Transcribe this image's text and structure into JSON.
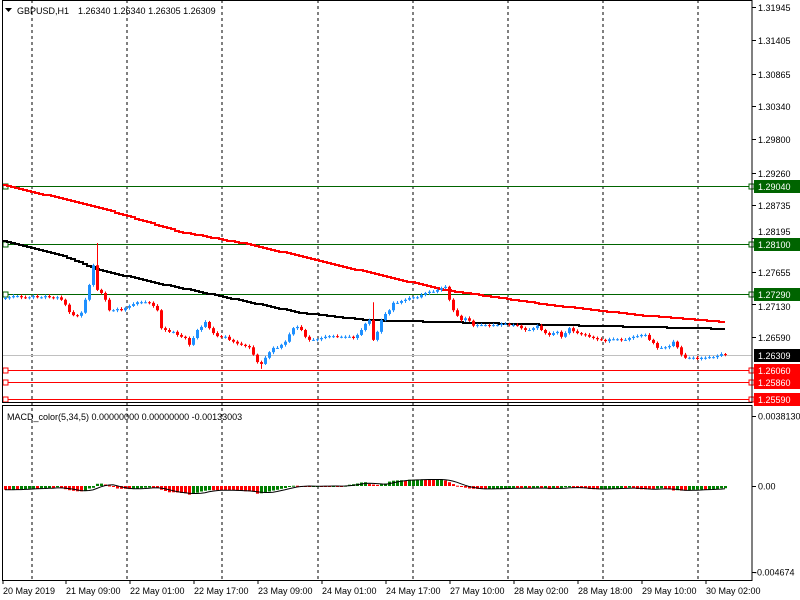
{
  "header": {
    "symbol_label": "GBPUSD,H1",
    "ohlc_label": "1.26340 1.26340 1.26305 1.26309"
  },
  "colors": {
    "bull": "#1E90FF",
    "bear": "#FF0000",
    "ma_fast": "#FF0000",
    "ma_slow": "#000000",
    "macd_up": "#008000",
    "macd_down": "#FF0000",
    "support": "#006400",
    "resistance": "#FF0000",
    "current": "#000000",
    "grid": "#000000"
  },
  "chart_data": [
    {
      "type": "candlestick",
      "title": "GBPUSD,H1",
      "timeframe": "H1",
      "x_labels": [
        "20 May 2019",
        "21 May 09:00",
        "22 May 01:00",
        "22 May 17:00",
        "23 May 09:00",
        "24 May 01:00",
        "24 May 17:00",
        "27 May 10:00",
        "28 May 02:00",
        "28 May 18:00",
        "29 May 10:00",
        "30 May 02:00"
      ],
      "price_axis": {
        "ylim": [
          1.2552,
          1.32
        ],
        "ticks": [
          "1.31945",
          "1.31405",
          "1.30865",
          "1.30340",
          "1.29800",
          "1.29260",
          "1.28735",
          "1.28195",
          "1.27655",
          "1.27130",
          "1.26590"
        ]
      },
      "first_open": 1.2722,
      "closes": [
        1.2723,
        1.2724,
        1.2726,
        1.2726,
        1.2724,
        1.2723,
        1.2724,
        1.2726,
        1.2724,
        1.2724,
        1.2726,
        1.2724,
        1.2723,
        1.2724,
        1.272,
        1.2712,
        1.27,
        1.2695,
        1.2694,
        1.2699,
        1.272,
        1.2744,
        1.2776,
        1.2736,
        1.2731,
        1.272,
        1.2703,
        1.2703,
        1.2705,
        1.2703,
        1.2707,
        1.271,
        1.2713,
        1.2716,
        1.2716,
        1.2716,
        1.2715,
        1.271,
        1.2703,
        1.2674,
        1.2671,
        1.2668,
        1.2668,
        1.2663,
        1.266,
        1.2658,
        1.2647,
        1.2658,
        1.2671,
        1.2676,
        1.2684,
        1.2674,
        1.2666,
        1.2661,
        1.266,
        1.266,
        1.2655,
        1.2652,
        1.2649,
        1.2647,
        1.2645,
        1.2643,
        1.2631,
        1.2619,
        1.2616,
        1.2626,
        1.2635,
        1.2642,
        1.2642,
        1.2647,
        1.2652,
        1.2664,
        1.2674,
        1.2676,
        1.2671,
        1.266,
        1.2655,
        1.2655,
        1.2656,
        1.2658,
        1.266,
        1.2661,
        1.2661,
        1.266,
        1.266,
        1.266,
        1.266,
        1.2658,
        1.2663,
        1.2671,
        1.2681,
        1.2687,
        1.2655,
        1.2668,
        1.2687,
        1.2697,
        1.2703,
        1.2715,
        1.2715,
        1.2718,
        1.272,
        1.2723,
        1.2724,
        1.2724,
        1.2728,
        1.2731,
        1.2733,
        1.2733,
        1.2736,
        1.2739,
        1.2741,
        1.272,
        1.2703,
        1.2694,
        1.2687,
        1.269,
        1.2686,
        1.2678,
        1.2679,
        1.2679,
        1.2679,
        1.2678,
        1.2679,
        1.2679,
        1.2681,
        1.2681,
        1.2679,
        1.2679,
        1.2678,
        1.2674,
        1.2671,
        1.2671,
        1.2674,
        1.2678,
        1.2671,
        1.2666,
        1.2663,
        1.2666,
        1.2668,
        1.266,
        1.2666,
        1.2674,
        1.2669,
        1.2666,
        1.2664,
        1.2663,
        1.266,
        1.2658,
        1.2656,
        1.2655,
        1.2653,
        1.2656,
        1.2656,
        1.2656,
        1.2655,
        1.2655,
        1.2658,
        1.266,
        1.2661,
        1.2663,
        1.2663,
        1.2655,
        1.265,
        1.2642,
        1.2642,
        1.2643,
        1.2645,
        1.2652,
        1.2643,
        1.2631,
        1.2626,
        1.2626,
        1.2626,
        1.2624,
        1.2626,
        1.2626,
        1.2627,
        1.2627,
        1.2629,
        1.2632,
        1.26309
      ],
      "high_overrides": [
        {
          "bar": 23,
          "high": 1.2812
        },
        {
          "bar": 92,
          "high": 1.2716
        }
      ],
      "low_overrides": [
        {
          "bar": 64,
          "low": 1.2608
        }
      ],
      "moving_averages": [
        {
          "name": "MA fast",
          "color_key": "ma_fast",
          "points": [
            [
              0,
              1.2906
            ],
            [
              24,
              1.2869
            ],
            [
              44,
              1.283
            ],
            [
              62,
              1.2809
            ],
            [
              86,
              1.2772
            ],
            [
              110,
              1.2736
            ],
            [
              136,
              1.2712
            ],
            [
              159,
              1.2695
            ],
            [
              180,
              1.2684
            ]
          ]
        },
        {
          "name": "MA slow",
          "color_key": "ma_slow",
          "points": [
            [
              0,
              1.2815
            ],
            [
              14,
              1.2793
            ],
            [
              24,
              1.2768
            ],
            [
              39,
              1.2746
            ],
            [
              54,
              1.2726
            ],
            [
              74,
              1.2699
            ],
            [
              91,
              1.2687
            ],
            [
              109,
              1.2684
            ],
            [
              139,
              1.2679
            ],
            [
              159,
              1.2676
            ],
            [
              180,
              1.2673
            ]
          ]
        }
      ],
      "levels": [
        {
          "value": "1.29040",
          "kind": "support"
        },
        {
          "value": "1.28100",
          "kind": "support"
        },
        {
          "value": "1.27290",
          "kind": "support"
        },
        {
          "value": "1.26060",
          "kind": "resistance"
        },
        {
          "value": "1.25860",
          "kind": "resistance"
        },
        {
          "value": "1.25590",
          "kind": "resistance"
        }
      ],
      "current_price": "1.26309"
    },
    {
      "type": "bar",
      "title": "MACD_color(5,34,5) 0.00000000 0.00000000 -0.00133003",
      "value_unit": "1e-4",
      "ylim": [
        -0.004674,
        0.003813
      ],
      "axis_labels": [
        "0.0038130",
        "0.00",
        "-0.004674"
      ],
      "histogram_e4": [
        -2.05,
        -2.05,
        -1.89,
        -1.89,
        -1.73,
        -1.62,
        -1.51,
        -1.35,
        -1.35,
        -1.24,
        -1.19,
        -1.08,
        -1.08,
        -0.65,
        -1.19,
        -1.73,
        -2.27,
        -2.59,
        -2.86,
        -2.86,
        -2.43,
        -1.35,
        -0.97,
        1.19,
        1.3,
        0.81,
        0.27,
        -0.27,
        -1.35,
        -1.51,
        -1.51,
        -1.67,
        -1.57,
        -1.35,
        -1.19,
        -0.92,
        -0.81,
        -0.81,
        -1.08,
        -2.05,
        -2.7,
        -3.4,
        -3.4,
        -3.51,
        -3.78,
        -3.94,
        -4.7,
        -4.32,
        -3.62,
        -2.97,
        -2.54,
        -2.27,
        -2.27,
        -2.27,
        -2.27,
        -2.27,
        -2.32,
        -2.43,
        -2.54,
        -2.7,
        -2.81,
        -2.86,
        -3.08,
        -4.16,
        -3.94,
        -3.51,
        -2.97,
        -2.43,
        -2.05,
        -1.51,
        -1.08,
        -0.54,
        0.16,
        0.16,
        -0.11,
        -0.16,
        -0.16,
        -0.11,
        0,
        0,
        0,
        -0.05,
        0,
        -0.05,
        -0.05,
        0.16,
        0.7,
        0.97,
        1.35,
        1.89,
        2.05,
        1.03,
        0.81,
        0.59,
        1.08,
        1.35,
        2.38,
        2.86,
        3.02,
        3.13,
        3.02,
        3.35,
        3.4,
        3.46,
        3.56,
        3.51,
        3.51,
        3.4,
        3.56,
        3.67,
        2.97,
        2.05,
        1.03,
        0.16,
        -0.16,
        -0.92,
        -1.35,
        -1.51,
        -1.57,
        -1.62,
        -1.67,
        -1.51,
        -1.46,
        -1.4,
        -1.35,
        -1.3,
        -1.19,
        -1.13,
        -1.24,
        -1.24,
        -1.19,
        -1.19,
        -1.08,
        -1.03,
        -1.24,
        -1.19,
        -1.67,
        -1.24,
        -1.24,
        -1.19,
        -0.7,
        -0.65,
        -0.92,
        -0.97,
        -1.19,
        -1.35,
        -1.62,
        -1.73,
        -1.73,
        -1.62,
        -1.51,
        -1.46,
        -1.35,
        -1.3,
        -1.24,
        -1.24,
        -0.86,
        -1.08,
        -1.62,
        -1.78,
        -1.78,
        -1.84,
        -1.84,
        -1.4,
        -1.19,
        -1.51,
        -1.89,
        -2.43,
        -2.27,
        -2.48,
        -2.54,
        -2.27,
        -2.05,
        -2.0,
        -1.89,
        -1.89,
        -1.84,
        -1.78,
        -1.62,
        -1.24,
        -1.19
      ],
      "signal_period": 5
    }
  ]
}
